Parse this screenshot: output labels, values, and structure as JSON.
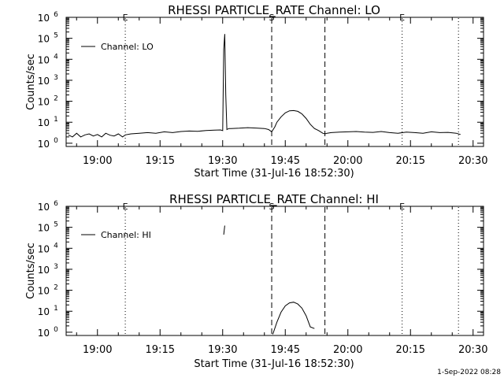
{
  "footer": {
    "timestamp": "1-Sep-2022 08:28"
  },
  "chart_data": [
    {
      "type": "line",
      "title": "RHESSI PARTICLE_RATE Channel: LO",
      "xlabel": "Start Time (31-Jul-16 18:52:30)",
      "ylabel": "Counts/sec",
      "yscale": "log",
      "ylim": [
        0.7,
        1000000
      ],
      "xlim": [
        "18:52:30",
        "20:32:30"
      ],
      "x_ticks": [
        "19:00",
        "19:15",
        "19:30",
        "19:45",
        "20:00",
        "20:15",
        "20:30"
      ],
      "y_ticks": [
        "10^0",
        "10^1",
        "10^2",
        "10^3",
        "10^4",
        "10^5",
        "10^6"
      ],
      "legend": {
        "label": "Channel: LO",
        "placement": "top-left"
      },
      "grid": false,
      "markers": [
        {
          "label": "E",
          "time": "19:06:40",
          "style": "dotted"
        },
        {
          "label": "S",
          "time": "19:41:45",
          "style": "dashed"
        },
        {
          "label": "",
          "time": "19:54:30",
          "style": "dashed"
        },
        {
          "label": "E",
          "time": "20:13:00",
          "style": "dotted"
        },
        {
          "label": "",
          "time": "20:26:30",
          "style": "dotted"
        }
      ],
      "series": [
        {
          "name": "Channel: LO",
          "x": [
            "18:53:00",
            "18:54:00",
            "18:55:00",
            "18:56:00",
            "18:57:00",
            "18:58:00",
            "18:59:00",
            "19:00:00",
            "19:01:00",
            "19:02:00",
            "19:03:00",
            "19:04:00",
            "19:05:00",
            "19:06:00",
            "19:06:40",
            "19:08:00",
            "19:10:00",
            "19:12:00",
            "19:14:00",
            "19:16:00",
            "19:18:00",
            "19:20:00",
            "19:22:00",
            "19:24:00",
            "19:26:00",
            "19:28:00",
            "19:29:30",
            "19:30:00",
            "19:30:15",
            "19:30:30",
            "19:30:45",
            "19:31:00",
            "19:31:30",
            "19:32:00",
            "19:34:00",
            "19:36:00",
            "19:38:00",
            "19:40:00",
            "19:41:00",
            "19:41:45",
            "19:42:30",
            "19:43:00",
            "19:44:00",
            "19:45:00",
            "19:46:00",
            "19:47:00",
            "19:48:00",
            "19:49:00",
            "19:50:00",
            "19:51:00",
            "19:52:00",
            "19:53:00",
            "19:54:00",
            "19:54:30",
            "19:55:00",
            "19:56:00",
            "19:58:00",
            "20:00:00",
            "20:02:00",
            "20:04:00",
            "20:06:00",
            "20:08:00",
            "20:10:00",
            "20:12:00",
            "20:14:00",
            "20:16:00",
            "20:18:00",
            "20:20:00",
            "20:22:00",
            "20:24:00",
            "20:26:00",
            "20:27:00"
          ],
          "y": [
            2.5,
            2.0,
            3.0,
            2.0,
            2.5,
            2.8,
            2.2,
            2.6,
            2.0,
            3.0,
            2.4,
            2.2,
            2.8,
            2.0,
            2.5,
            2.8,
            3.0,
            3.2,
            3.0,
            3.5,
            3.2,
            3.6,
            3.8,
            3.7,
            4.0,
            4.2,
            4.3,
            4.0,
            30000,
            160000,
            200,
            4.5,
            5.0,
            5.0,
            5.2,
            5.5,
            5.3,
            5.0,
            4.5,
            3.5,
            6,
            10,
            18,
            28,
            35,
            36,
            33,
            25,
            15,
            8,
            5,
            4,
            3,
            2.8,
            3.0,
            3.2,
            3.4,
            3.5,
            3.6,
            3.4,
            3.3,
            3.6,
            3.2,
            3.0,
            3.4,
            3.2,
            3.0,
            3.5,
            3.2,
            3.3,
            3.0,
            2.6
          ]
        }
      ]
    },
    {
      "type": "line",
      "title": "RHESSI PARTICLE_RATE Channel: HI",
      "xlabel": "Start Time (31-Jul-16 18:52:30)",
      "ylabel": "Counts/sec",
      "yscale": "log",
      "ylim": [
        0.7,
        1000000
      ],
      "xlim": [
        "18:52:30",
        "20:32:30"
      ],
      "x_ticks": [
        "19:00",
        "19:15",
        "19:30",
        "19:45",
        "20:00",
        "20:15",
        "20:30"
      ],
      "y_ticks": [
        "10^0",
        "10^1",
        "10^2",
        "10^3",
        "10^4",
        "10^5",
        "10^6"
      ],
      "legend": {
        "label": "Channel: HI",
        "placement": "top-left"
      },
      "grid": false,
      "markers": [
        {
          "label": "E",
          "time": "19:06:40",
          "style": "dotted"
        },
        {
          "label": "S",
          "time": "19:41:45",
          "style": "dashed"
        },
        {
          "label": "",
          "time": "19:54:30",
          "style": "dashed"
        },
        {
          "label": "E",
          "time": "20:13:00",
          "style": "dotted"
        },
        {
          "label": "",
          "time": "20:26:30",
          "style": "dotted"
        }
      ],
      "series": [
        {
          "name": "Channel: HI",
          "segments": [
            {
              "x": [
                "19:30:15",
                "19:30:30"
              ],
              "y": [
                45000,
                120000
              ]
            },
            {
              "x": [
                "19:42:00",
                "19:43:00",
                "19:44:00",
                "19:45:00",
                "19:46:00",
                "19:47:00",
                "19:48:00",
                "19:49:00",
                "19:50:00",
                "19:51:00",
                "19:52:00"
              ],
              "y": [
                0.8,
                3.0,
                9,
                18,
                25,
                27,
                22,
                14,
                6,
                1.8,
                1.5
              ]
            }
          ]
        }
      ]
    }
  ]
}
